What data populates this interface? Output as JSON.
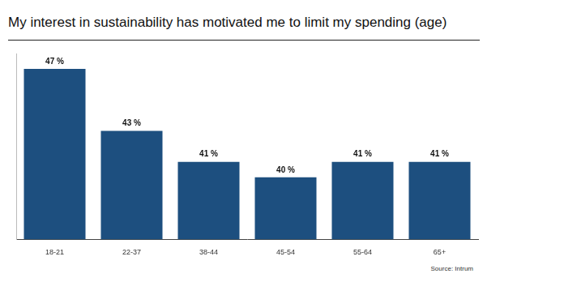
{
  "chart_data": {
    "type": "bar",
    "title": "My interest in sustainability has motivated me to limit my spending (age)",
    "categories": [
      "18-21",
      "22-37",
      "38-44",
      "45-54",
      "55-64",
      "65+"
    ],
    "values": [
      47,
      43,
      41,
      40,
      41,
      41
    ],
    "value_labels": [
      "47 %",
      "43 %",
      "41 %",
      "40 %",
      "41 %",
      "41 %"
    ],
    "color": "#1d4f7f",
    "ylim": [
      36,
      48
    ],
    "grid": false,
    "data_labels": true,
    "tick_labels": "x",
    "source": "Source: Intrum"
  }
}
